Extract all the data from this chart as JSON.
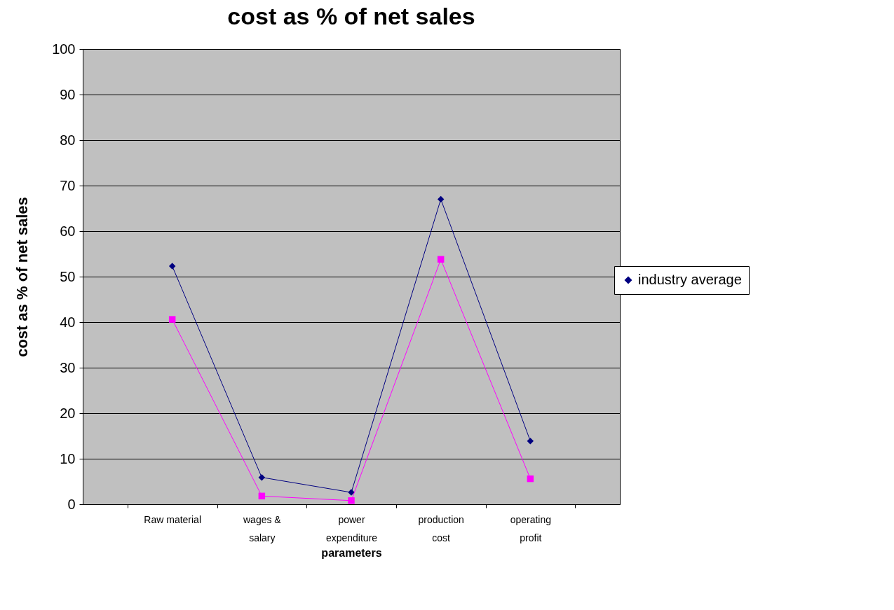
{
  "chart_data": {
    "type": "line",
    "title": "cost as % of net sales",
    "xlabel": "parameters",
    "ylabel": "cost as % of net sales",
    "categories": [
      "Raw material",
      "wages & salary",
      "power expenditure",
      "production cost",
      "operating profit"
    ],
    "series": [
      {
        "name": "industry average",
        "color": "#000080",
        "marker": "diamond",
        "values": [
          52.3,
          5.9,
          2.6,
          67,
          13.9
        ]
      },
      {
        "color": "#ff00ff",
        "marker": "square",
        "values": [
          40.6,
          1.8,
          0.8,
          53.8,
          5.6
        ]
      }
    ],
    "ylim": [
      0,
      100
    ],
    "yticks": [
      0,
      10,
      20,
      30,
      40,
      50,
      60,
      70,
      80,
      90,
      100
    ],
    "grid": "y",
    "legend": "right"
  }
}
